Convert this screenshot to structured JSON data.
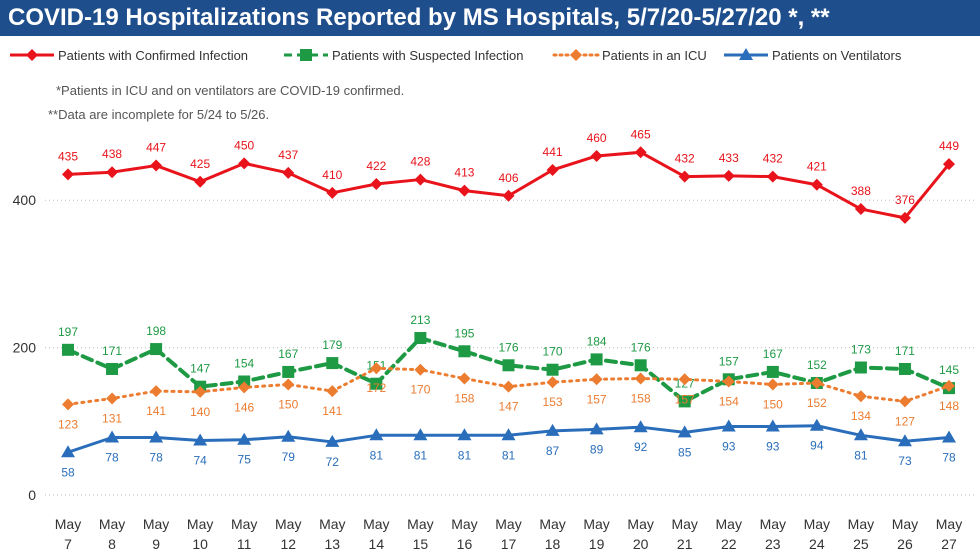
{
  "chart_data": {
    "type": "line",
    "title": "COVID-19 Hospitalizations Reported by MS Hospitals, 5/7/20-5/27/20 *, **",
    "notes": [
      "*Patients in ICU and on ventilators are COVID-19 confirmed.",
      "**Data are incomplete for 5/24 to 5/26."
    ],
    "categories": [
      [
        "May",
        "7"
      ],
      [
        "May",
        "8"
      ],
      [
        "May",
        "9"
      ],
      [
        "May",
        "10"
      ],
      [
        "May",
        "11"
      ],
      [
        "May",
        "12"
      ],
      [
        "May",
        "13"
      ],
      [
        "May",
        "14"
      ],
      [
        "May",
        "15"
      ],
      [
        "May",
        "16"
      ],
      [
        "May",
        "17"
      ],
      [
        "May",
        "18"
      ],
      [
        "May",
        "19"
      ],
      [
        "May",
        "20"
      ],
      [
        "May",
        "21"
      ],
      [
        "May",
        "22"
      ],
      [
        "May",
        "23"
      ],
      [
        "May",
        "24"
      ],
      [
        "May",
        "25"
      ],
      [
        "May",
        "26"
      ],
      [
        "May",
        "27"
      ]
    ],
    "y_ticks": [
      0,
      200,
      400
    ],
    "ylim": [
      0,
      520
    ],
    "grid": "dotted horizontal",
    "legend_position": "top",
    "series": [
      {
        "name": "Patients with Confirmed Infection",
        "color": "#e8131b",
        "marker": "diamond",
        "dash": "solid",
        "label_position": "above",
        "values": [
          435,
          438,
          447,
          425,
          450,
          437,
          410,
          422,
          428,
          413,
          406,
          441,
          460,
          465,
          432,
          433,
          432,
          421,
          388,
          376,
          449
        ]
      },
      {
        "name": "Patients with Suspected Infection",
        "color": "#1e9a44",
        "marker": "square",
        "dash": "dashed",
        "label_position": "above",
        "values": [
          197,
          171,
          198,
          147,
          154,
          167,
          179,
          151,
          213,
          195,
          176,
          170,
          184,
          176,
          127,
          157,
          167,
          152,
          173,
          171,
          145
        ]
      },
      {
        "name": "Patients in an ICU",
        "color": "#ec7c30",
        "marker": "diamond",
        "dash": "dotted",
        "label_position": "below",
        "values": [
          123,
          131,
          141,
          140,
          146,
          150,
          141,
          172,
          170,
          158,
          147,
          153,
          157,
          158,
          157,
          154,
          150,
          152,
          134,
          127,
          148
        ]
      },
      {
        "name": "Patients on Ventilators",
        "color": "#2a6ebb",
        "marker": "triangle",
        "dash": "solid",
        "label_position": "below",
        "values": [
          58,
          78,
          78,
          74,
          75,
          79,
          72,
          81,
          81,
          81,
          81,
          87,
          89,
          92,
          85,
          93,
          93,
          94,
          81,
          73,
          78
        ]
      }
    ]
  }
}
